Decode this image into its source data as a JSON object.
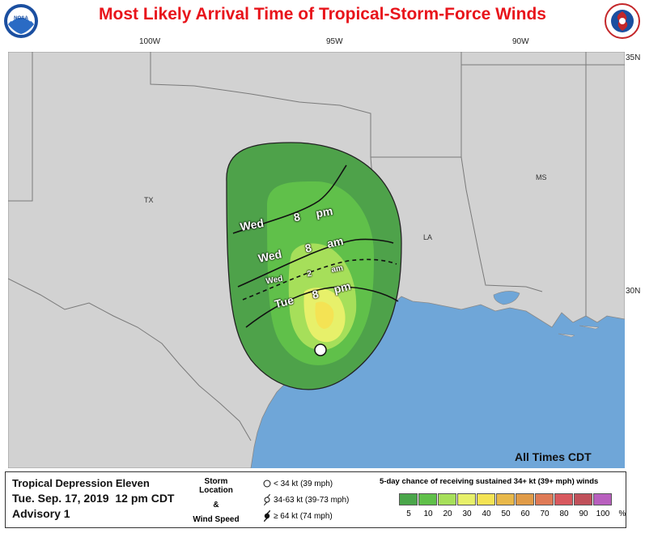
{
  "title": "Most Likely Arrival Time of Tropical-Storm-Force Winds",
  "logos": {
    "left": "noaa-logo",
    "right": "nws-logo"
  },
  "longitude_labels": [
    "100W",
    "95W",
    "90W"
  ],
  "latitude_labels": [
    "35N",
    "30N"
  ],
  "state_labels": [
    "TX",
    "LA",
    "MS"
  ],
  "isochrones": [
    {
      "day": "Wed",
      "hour": "8",
      "ampm": "pm"
    },
    {
      "day": "Wed",
      "hour": "8",
      "ampm": "am"
    },
    {
      "day": "Wed",
      "hour": "2",
      "ampm": "am"
    },
    {
      "day": "Tue",
      "hour": "8",
      "ampm": "pm"
    }
  ],
  "times_note": "All Times CDT",
  "storm": {
    "name": "Tropical Depression Eleven",
    "date": "Tue. Sep. 17, 2019  12 pm CDT",
    "advisory": "Advisory 1"
  },
  "key": {
    "heading_1": "Storm Location",
    "heading_2": "&",
    "heading_3": "Wind Speed",
    "items": [
      {
        "label": "< 34 kt (39 mph)",
        "icon": "open-circle-icon"
      },
      {
        "label": "34-63 kt (39-73 mph)",
        "icon": "tropical-storm-icon"
      },
      {
        "label": "≥ 64 kt (74 mph)",
        "icon": "hurricane-icon"
      }
    ]
  },
  "probability": {
    "title": "5-day chance of receiving sustained 34+ kt (39+ mph) winds",
    "labels": [
      "5",
      "10",
      "20",
      "30",
      "40",
      "50",
      "60",
      "70",
      "80",
      "90",
      "100",
      "%"
    ],
    "colors": [
      "#4aa64a",
      "#60c04a",
      "#a6df5a",
      "#e7f06a",
      "#f4e354",
      "#e8b84a",
      "#e09b48",
      "#df7a56",
      "#d8585e",
      "#c0505a",
      "#b85fbe"
    ]
  },
  "colors": {
    "ocean": "#6fa6d8",
    "land": "#d2d2d2",
    "outer_swath": "#4ea24a",
    "title": "#e8141b"
  }
}
